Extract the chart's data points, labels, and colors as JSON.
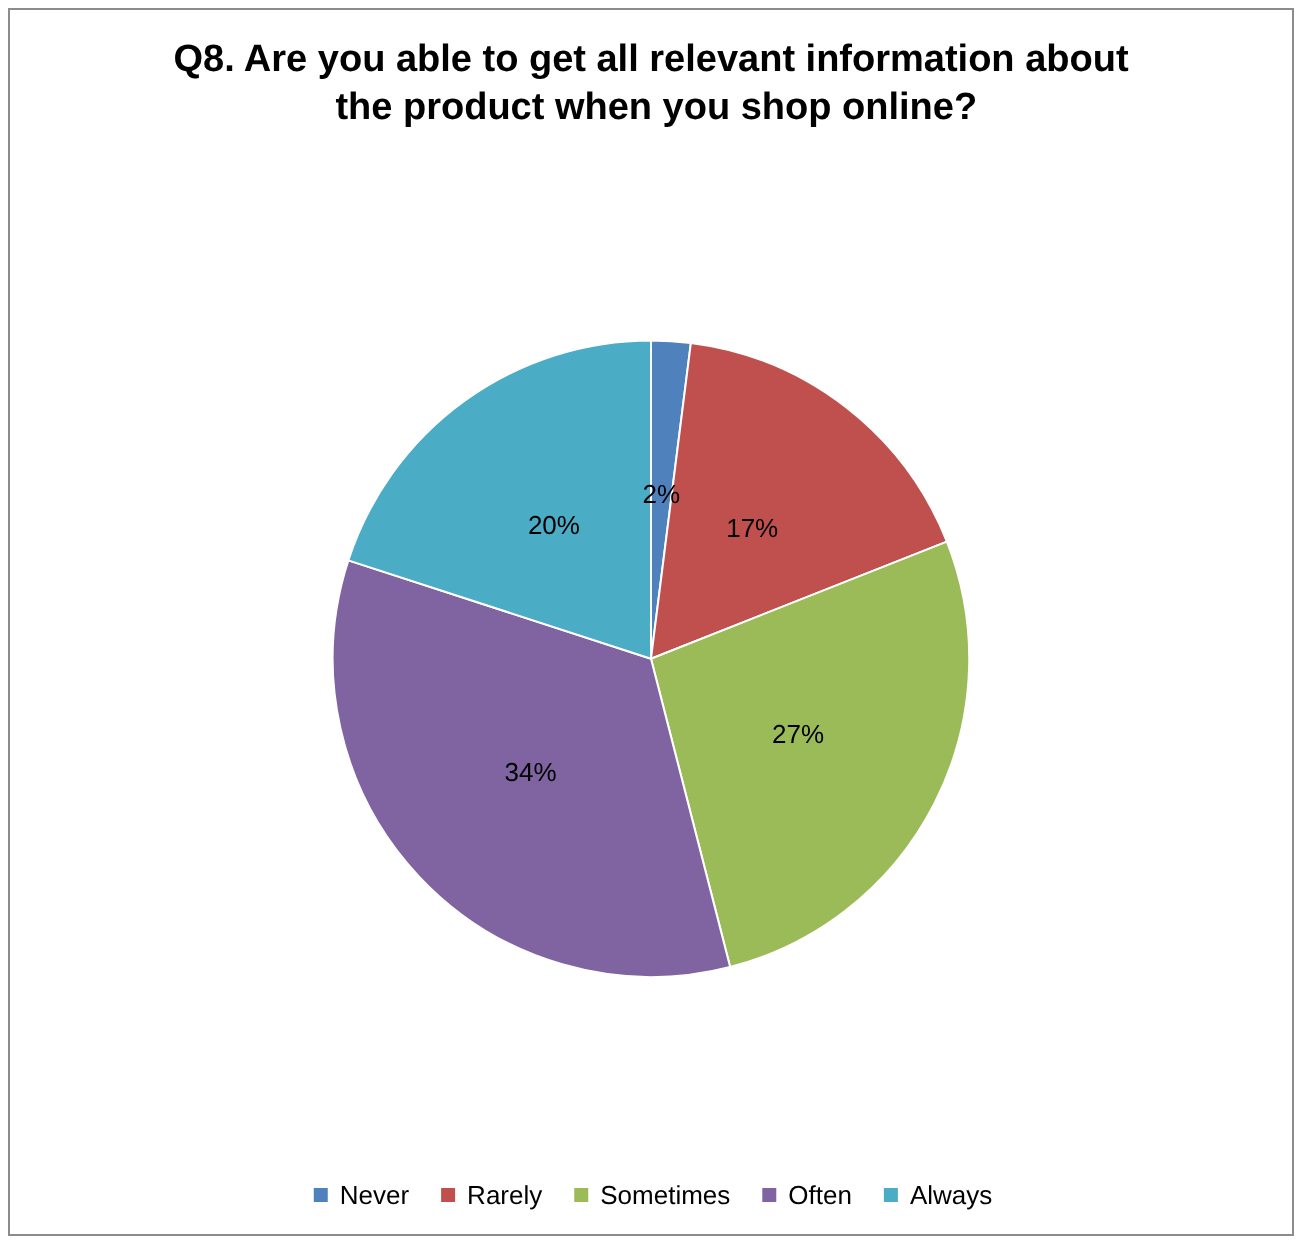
{
  "chart_data": {
    "type": "pie",
    "title": "Q8. Are you able to get all relevant information about the product when you shop online?",
    "categories": [
      "Never",
      "Rarely",
      "Sometimes",
      "Often",
      "Always"
    ],
    "values": [
      2,
      17,
      27,
      34,
      20
    ],
    "colors": [
      "#4f81bd",
      "#c0504d",
      "#9bbb59",
      "#8064a2",
      "#4bacc6"
    ],
    "value_labels": [
      "2%",
      "17%",
      "27%",
      "34%",
      "20%"
    ],
    "legend": "bottom"
  }
}
